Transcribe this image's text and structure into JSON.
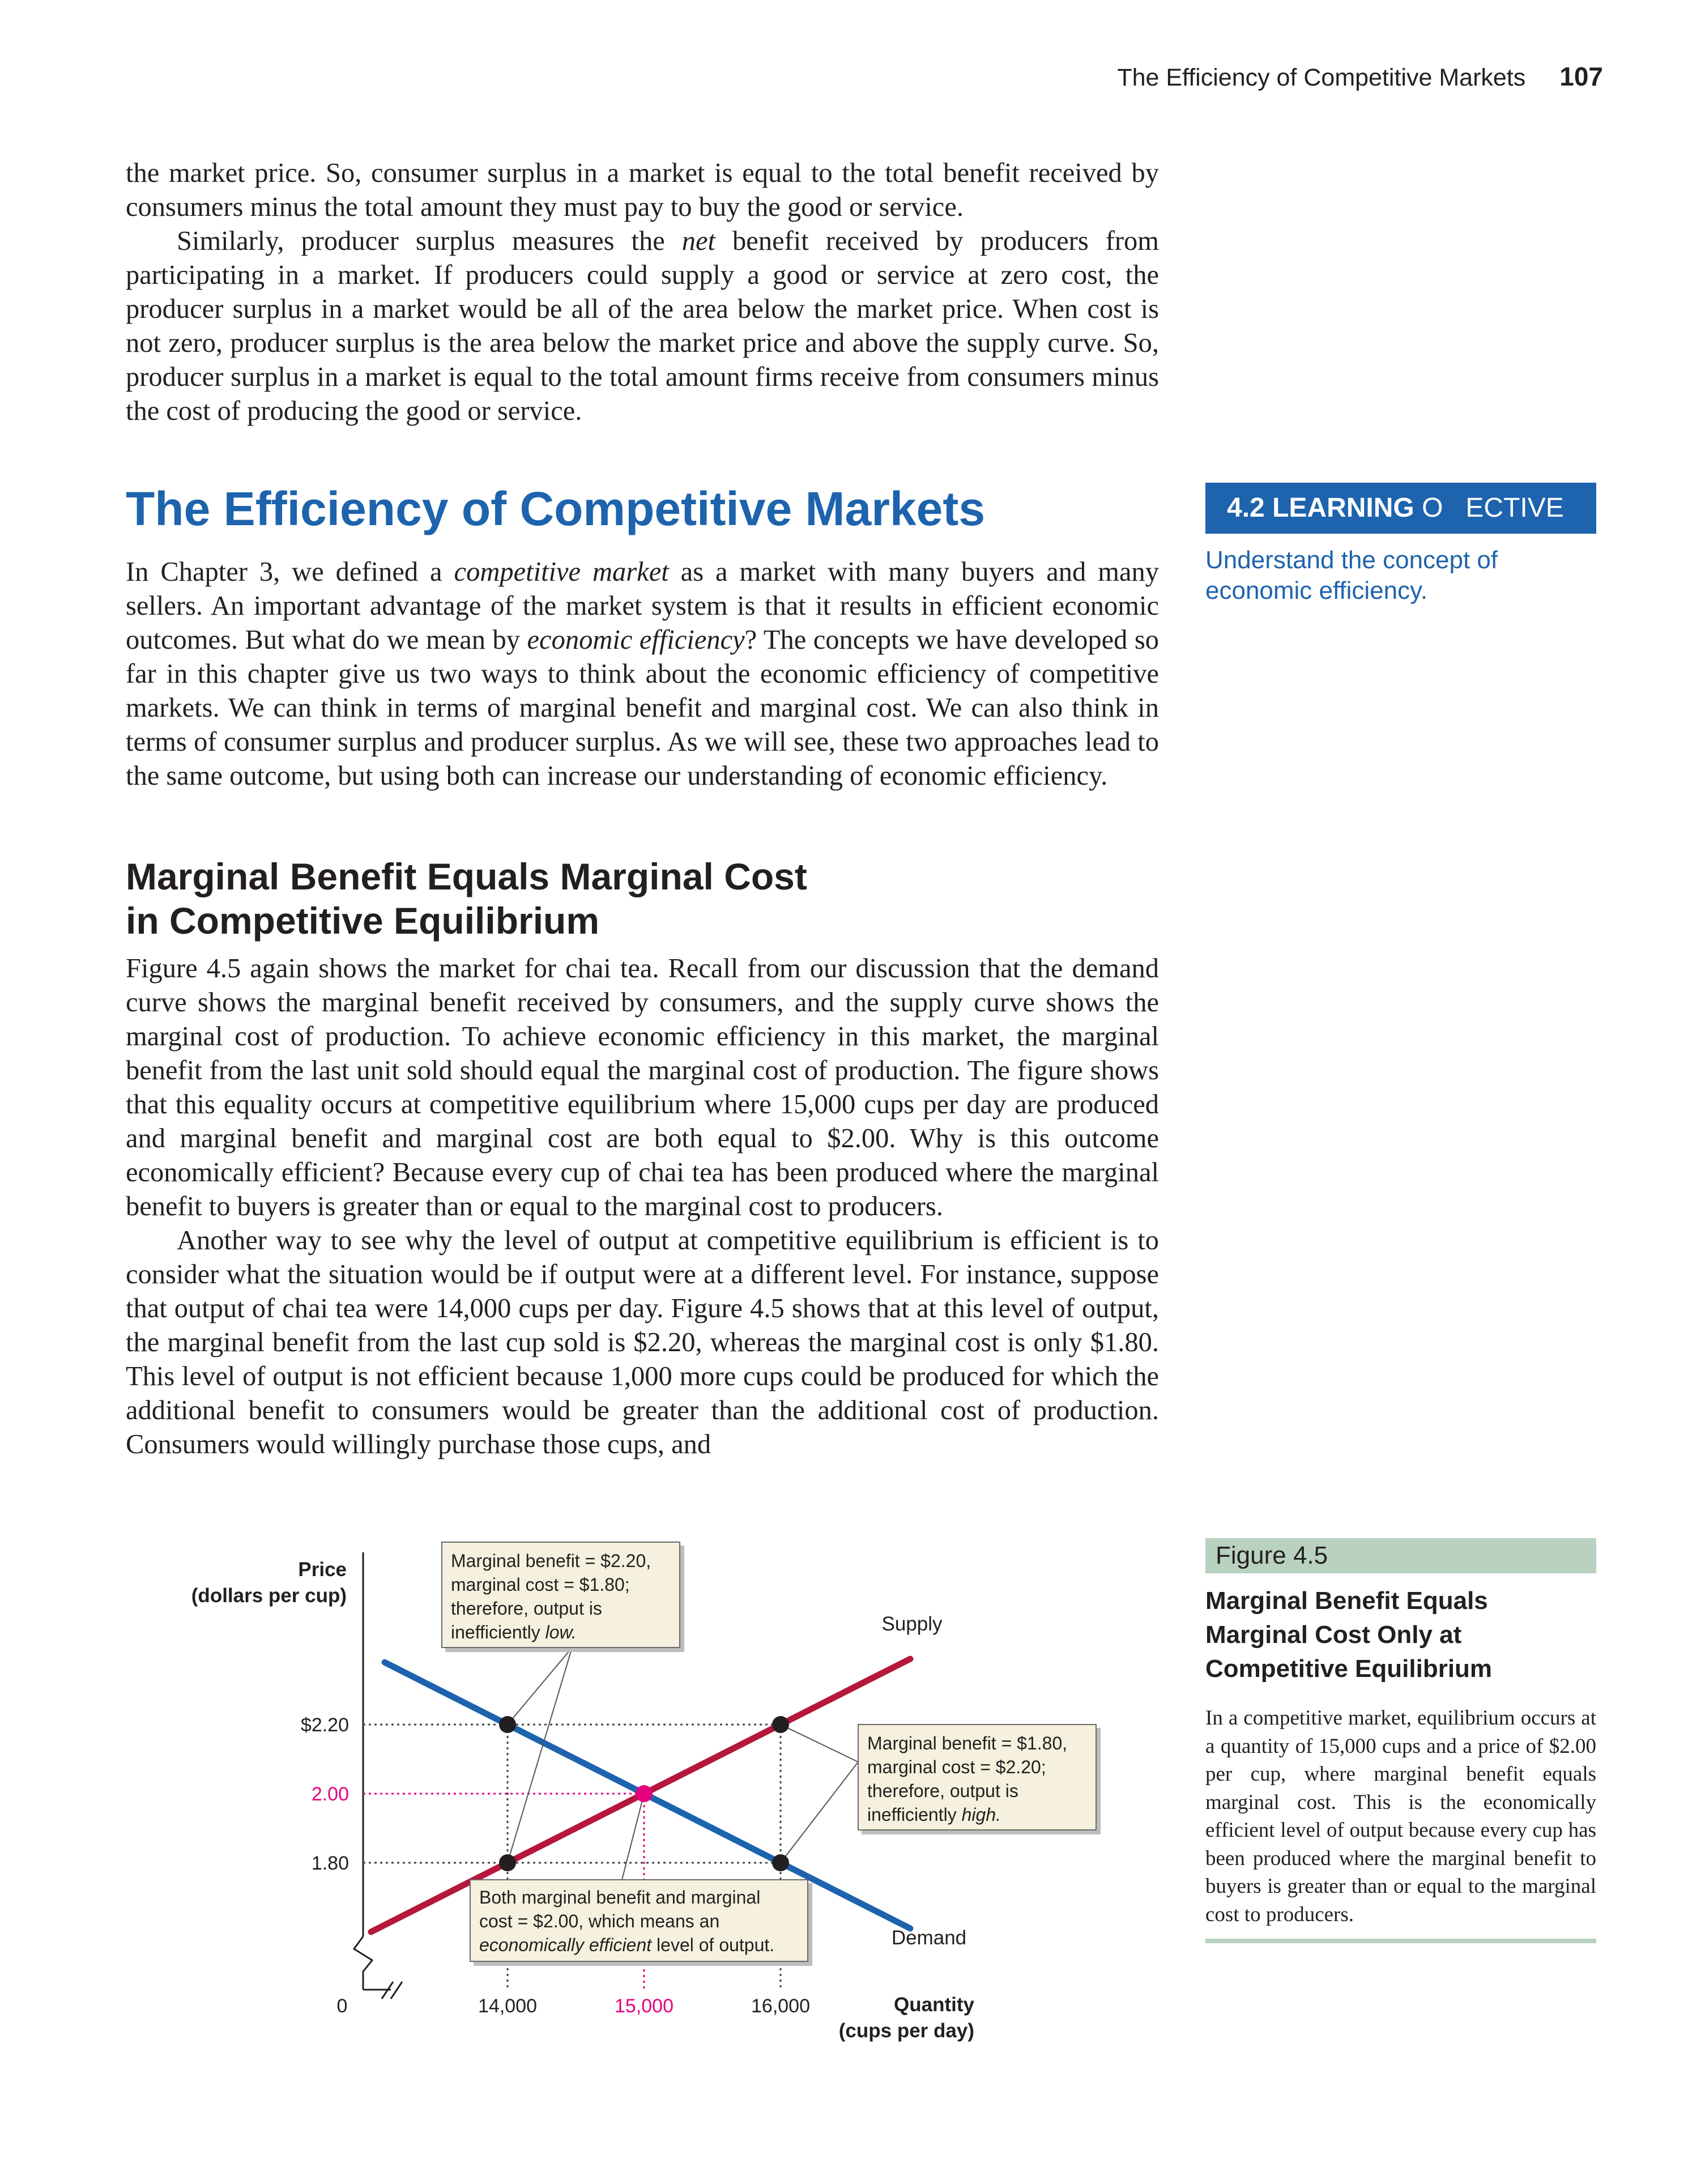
{
  "header": {
    "running_title": "The Efficiency of Competitive Markets",
    "page_number": "107"
  },
  "intro": {
    "p1": "the market price. So, consumer surplus in a market is equal to the total benefit received by consumers minus the total amount they must pay to buy the good or service.",
    "p2_a": "Similarly, producer surplus measures the ",
    "p2_em": "net",
    "p2_b": " benefit received by producers from participating in a market. If producers could supply a good or service at zero cost, the producer surplus in a market would be all of the area below the market price. When cost is not zero, producer surplus is the area below the market price and above the supply curve. So, producer surplus in a market is equal to the total amount firms receive from consumers minus the cost of producing the good or service."
  },
  "section": {
    "heading": "The Efficiency of Competitive Markets",
    "p_a": "In Chapter 3, we defined a ",
    "p_em1": "competitive market",
    "p_b": " as a market with many buyers and many sellers. An important advantage of the market system is that it results in efficient economic outcomes. But what do we mean by ",
    "p_em2": "economic efficiency",
    "p_c": "? The concepts we have developed so far in this chapter give us two ways to think about the economic efficiency of competitive markets. We can think in terms of marginal benefit and marginal cost. We can also think in terms of consumer surplus and producer surplus. As we will see, these two approaches lead to the same outcome, but using both can increase our understanding of economic efficiency."
  },
  "learning_objective": {
    "label_bold": "4.2 LEARNING",
    "label_rest": " O   ECTIVE",
    "text": "Understand the concept of economic efficiency."
  },
  "subsection": {
    "heading_line1": "Marginal Benefit Equals Marginal Cost",
    "heading_line2": "in Competitive Equilibrium",
    "p1": "Figure 4.5 again shows the market for chai tea. Recall from our discussion that the demand curve shows the marginal benefit received by consumers, and the supply curve shows the marginal cost of production. To achieve economic efficiency in this market, the marginal benefit from the last unit sold should equal the marginal cost of production. The figure shows that this equality occurs at competitive equilibrium where 15,000 cups per day are produced and marginal benefit and marginal cost are both equal to $2.00. Why is this outcome economically efficient? Because every cup of chai tea has been produced where the marginal benefit to buyers is greater than or equal to the marginal cost to producers.",
    "p2": "Another way to see why the level of output at competitive equilibrium is efficient is to consider what the situation would be if output were at a different level. For instance, suppose that output of chai tea were 14,000 cups per day. Figure 4.5 shows that at this level of output, the marginal benefit from the last cup sold is $2.20, whereas the marginal cost is only $1.80. This level of output is not efficient because 1,000 more cups could be produced for which the additional benefit to consumers would be greater than the additional cost of production. Consumers would willingly purchase those cups, and"
  },
  "figure": {
    "label": "Figure 4.5",
    "title_line1": "Marginal Benefit Equals",
    "title_line2": "Marginal Cost Only at",
    "title_line3": "Competitive Equilibrium",
    "caption": "In a competitive market, equilibrium occurs at a quantity of 15,000 cups and a price of $2.00 per cup, where marginal benefit equals marginal cost. This is the economically efficient level of output because every cup has been produced where the marginal benefit to buyers is greater than or equal to the marginal cost to producers."
  },
  "chart": {
    "y_title_1": "Price",
    "y_title_2": "(dollars per cup)",
    "x_title_1": "Quantity",
    "x_title_2": "(cups per day)",
    "y_tick_220": "$2.20",
    "y_tick_200": "2.00",
    "y_tick_180": "1.80",
    "x_tick_0": "0",
    "x_tick_14000": "14,000",
    "x_tick_15000": "15,000",
    "x_tick_16000": "16,000",
    "supply_label": "Supply",
    "demand_label": "Demand",
    "box_low_1": "Marginal benefit = $2.20,",
    "box_low_2": "marginal cost = $1.80;",
    "box_low_3": "therefore, output is",
    "box_low_4a": "inefficiently ",
    "box_low_4b": "low.",
    "box_high_1": "Marginal benefit = $1.80,",
    "box_high_2": "marginal cost = $2.20;",
    "box_high_3": "therefore, output is",
    "box_high_4a": "inefficiently ",
    "box_high_4b": "high.",
    "box_eq_1": "Both marginal benefit and marginal",
    "box_eq_2": "cost = $2.00, which means an",
    "box_eq_3a": "economically efficient",
    "box_eq_3b": " level of output."
  },
  "chart_data": {
    "type": "line",
    "xlabel": "Quantity (cups per day)",
    "ylabel": "Price (dollars per cup)",
    "x_ticks": [
      0,
      14000,
      15000,
      16000
    ],
    "y_ticks": [
      1.8,
      2.0,
      2.2
    ],
    "axis_breaks": true,
    "series": [
      {
        "name": "Supply",
        "color": "#b5173d",
        "points": [
          [
            13000,
            1.6
          ],
          [
            14000,
            1.8
          ],
          [
            15000,
            2.0
          ],
          [
            16000,
            2.2
          ],
          [
            17000,
            2.4
          ]
        ]
      },
      {
        "name": "Demand",
        "color": "#1d63ad",
        "points": [
          [
            13000,
            2.4
          ],
          [
            14000,
            2.2
          ],
          [
            15000,
            2.0
          ],
          [
            16000,
            1.8
          ],
          [
            17000,
            1.6
          ]
        ]
      }
    ],
    "points": [
      {
        "x": 14000,
        "y": 2.2,
        "color": "#231f20"
      },
      {
        "x": 14000,
        "y": 1.8,
        "color": "#231f20"
      },
      {
        "x": 16000,
        "y": 2.2,
        "color": "#231f20"
      },
      {
        "x": 16000,
        "y": 1.8,
        "color": "#231f20"
      },
      {
        "x": 15000,
        "y": 2.0,
        "color": "#e5007e"
      }
    ],
    "highlight_color": "#e5007e"
  }
}
